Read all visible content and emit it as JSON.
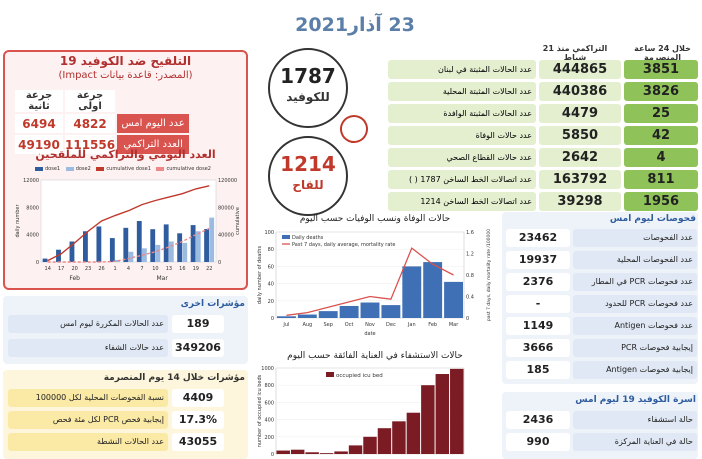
{
  "header": {
    "date": "23 آذار2021"
  },
  "vaccination": {
    "title": "التلقيح ضد الكوفيد 19",
    "source": "(المصدر: قاعدة بيانات Impact)",
    "col_first": "جرعة اولى",
    "col_second": "جرعة ثانية",
    "row_yesterday": "عدد اليوم امس",
    "row_total": "العدد التراكمي",
    "first_yesterday": "4822",
    "second_yesterday": "6494",
    "first_total": "111556",
    "second_total": "49190",
    "chart_title": "العدد اليومي والتراكمي للملقحين",
    "legend": [
      "dose1",
      "dose2",
      "cumulative dose1",
      "cumulative dose2"
    ]
  },
  "hotlines": {
    "covid_number": "1787",
    "covid_label": "للكوفيد",
    "vaccine_number": "1214",
    "vaccine_label": "للقاح"
  },
  "summary": {
    "col_cumulative": "التراكمي منذ 21 شباط",
    "col_24h": "خلال 24 ساعة المنصرمة",
    "rows": [
      {
        "label": "عدد الحالات المثبتة في لبنان",
        "total": "444865",
        "today": "3851"
      },
      {
        "label": "عدد الحالات المثبتة المحلية",
        "total": "440386",
        "today": "3826"
      },
      {
        "label": "عدد الحالات المثبتة الوافدة",
        "total": "4479",
        "today": "25"
      },
      {
        "label": "عدد حالات الوفاة",
        "total": "5850",
        "today": "42"
      },
      {
        "label": "عدد حالات القطاع الصحي",
        "total": "2642",
        "today": "4"
      },
      {
        "label": "عدد اتصالات الخط الساخن 1787 ( )",
        "total": "163792",
        "today": "811"
      },
      {
        "label": "عدد اتصالات الخط الساخن 1214",
        "total": "39298",
        "today": "1956"
      }
    ]
  },
  "tests": {
    "title": "فحوصات ليوم امس",
    "rows": [
      {
        "label": "عدد الفحوصات",
        "value": "23462"
      },
      {
        "label": "عدد الفحوصات المحلية",
        "value": "19937"
      },
      {
        "label": "عدد فحوصات PCR في المطار",
        "value": "2376"
      },
      {
        "label": "عدد فحوصات PCR للحدود",
        "value": "-"
      },
      {
        "label": "عدد فحوصات Antigen",
        "value": "1149"
      },
      {
        "label": "إيجابية فحوصات PCR",
        "value": "3666"
      },
      {
        "label": "إيجابية فحوصات Antigen",
        "value": "185"
      }
    ]
  },
  "family": {
    "title": "اسرة الكوفيد 19 ليوم امس",
    "rows": [
      {
        "label": "حالة استشفاء",
        "value": "2436"
      },
      {
        "label": "حالة في العناية المركزة",
        "value": "990"
      }
    ]
  },
  "other": {
    "title": "مؤشرات اخرى",
    "rows": [
      {
        "label": "عدد الحالات المكررة ليوم امس",
        "value": "189"
      },
      {
        "label": "عدد حالات الشفاء",
        "value": "349206"
      }
    ]
  },
  "last14": {
    "title": "مؤشرات خلال 14 يوم المنصرمة",
    "rows": [
      {
        "label": "نسبة الفحوصات المحلية لكل 100000",
        "value": "4409"
      },
      {
        "label": "إيجابية فحص PCR لكل مئة فحص",
        "value": "17.3%"
      },
      {
        "label": "عدد الحالات النشطة",
        "value": "43055"
      }
    ]
  },
  "colors": {
    "summary_green": "#8fc35a",
    "summary_light": "#e3efcf",
    "tests_blue": "#4a78b5",
    "tests_light": "#dfe8f4",
    "yellow": "#fbe9a6",
    "yellow_dark": "#f2cf4f",
    "vac_red": "#d9534f"
  },
  "chart_data": [
    {
      "type": "bar",
      "title": "العدد اليومي والتراكمي للملقحين",
      "ylabel": "daily number",
      "y2label": "cumulative",
      "x_groups": [
        "Feb",
        "Mar"
      ],
      "categories": [
        "14",
        "17",
        "20",
        "23",
        "26",
        "1",
        "4",
        "7",
        "10",
        "13",
        "16",
        "19",
        "22"
      ],
      "ylim": [
        0,
        12000
      ],
      "y2lim": [
        0,
        120000
      ],
      "series": [
        {
          "name": "dose1",
          "values": [
            500,
            1800,
            3000,
            4500,
            5200,
            3500,
            5000,
            6000,
            4800,
            5500,
            4200,
            5400,
            4822
          ]
        },
        {
          "name": "dose2",
          "values": [
            0,
            0,
            0,
            0,
            0,
            300,
            1500,
            2000,
            2500,
            3000,
            2800,
            4500,
            6494
          ]
        },
        {
          "name": "cumulative dose1",
          "values": [
            2000,
            12000,
            28000,
            45000,
            60000,
            68000,
            75000,
            84000,
            90000,
            95000,
            100000,
            107000,
            111556
          ]
        },
        {
          "name": "cumulative dose2",
          "values": [
            0,
            0,
            0,
            0,
            0,
            1000,
            5000,
            10000,
            15000,
            22000,
            30000,
            40000,
            49190
          ]
        }
      ]
    },
    {
      "type": "bar",
      "title": "حالات الوفاة ونسب الوفيات حسب اليوم",
      "xlabel": "date",
      "ylabel": "daily number of deaths",
      "y2label": "past 7 days, daily mortality rate /100000",
      "legend": [
        "Daily deaths",
        "Past 7 days, daily average, mortality rate"
      ],
      "categories": [
        "Jul",
        "Aug",
        "Sep",
        "Oct",
        "Nov",
        "Dec",
        "Jan",
        "Feb",
        "Mar"
      ],
      "values": [
        2,
        4,
        8,
        14,
        18,
        15,
        60,
        65,
        42
      ],
      "line_values": [
        0.05,
        0.1,
        0.2,
        0.3,
        0.4,
        0.35,
        1.3,
        1.0,
        0.8
      ],
      "ylim": [
        0,
        100
      ],
      "y2lim": [
        0,
        1.6
      ]
    },
    {
      "type": "bar",
      "title": "حالات الاستشفاء في العناية الفائقة حسب اليوم",
      "ylabel": "number of occupied icu beds",
      "legend": [
        "occupied icu bed"
      ],
      "categories": [
        "Mar",
        "Apr",
        "May",
        "Jun",
        "Jul",
        "Aug",
        "Sep",
        "Oct",
        "Nov",
        "Dec",
        "Jan",
        "Feb",
        "Mar"
      ],
      "values": [
        40,
        50,
        20,
        10,
        30,
        100,
        200,
        300,
        380,
        480,
        800,
        930,
        990
      ],
      "ylim": [
        0,
        1000
      ]
    }
  ]
}
